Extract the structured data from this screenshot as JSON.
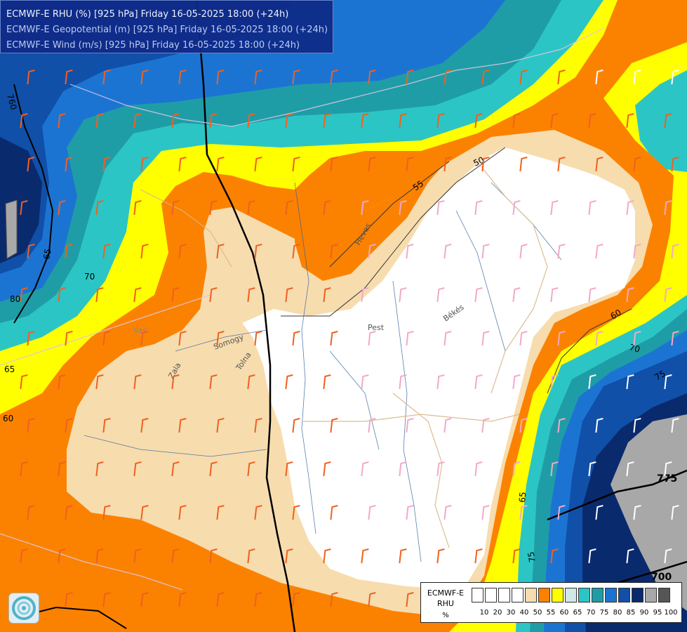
{
  "title_lines": [
    "ECMWF-E RHU (%) [925 hPa] Friday 16-05-2025 18:00 (+24h)",
    "ECMWF-E Geopotential (m) [925 hPa] Friday 16-05-2025 18:00 (+24h)",
    "ECMWF-E Wind (m/s) [925 hPa] Friday 16-05-2025 18:00 (+24h)"
  ],
  "legend": {
    "model": "ECMWF-E",
    "variable": "RHU",
    "unit": "%",
    "ticks": [
      "10",
      "20",
      "30",
      "40",
      "50",
      "55",
      "60",
      "65",
      "70",
      "75",
      "80",
      "85",
      "90",
      "95",
      "100"
    ],
    "colors": [
      "#ffffff",
      "#ffffff",
      "#ffffff",
      "#ffffff",
      "#f7dcae",
      "#fb8200",
      "#ffff00",
      "#cfe8e8",
      "#2cc5c5",
      "#1f9da6",
      "#1c74d2",
      "#1050a8",
      "#0a2a6e",
      "#a8a8a8",
      "#555555"
    ]
  },
  "map_labels": {
    "contours": [
      "760",
      "65",
      "70",
      "80",
      "65",
      "60",
      "50",
      "55",
      "60",
      "70",
      "75",
      "65",
      "75",
      "700",
      "775"
    ],
    "places": [
      "Pest",
      "Békés",
      "Heves",
      "Vas",
      "Zala",
      "Somogy",
      "Tolna"
    ]
  },
  "palette": {
    "white": "#ffffff",
    "tan": "#f7dcae",
    "orange": "#fb8200",
    "yellow": "#ffff00",
    "cyan": "#2cc5c5",
    "teal": "#1f9da6",
    "blue": "#1c74d2",
    "darkblue": "#1050a8",
    "navy": "#0a2a6e",
    "gray": "#a8a8a8"
  },
  "logo_icon": "observatory-swirl-icon"
}
